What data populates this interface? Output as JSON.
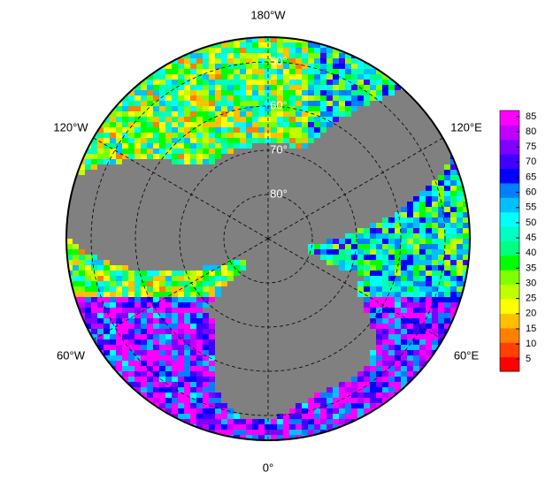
{
  "map": {
    "lon_labels": [
      "180°W",
      "120°E",
      "60°E",
      "0°",
      "60°W",
      "120°W"
    ],
    "lat_labels": [
      "50°",
      "60°",
      "70°",
      "80°"
    ]
  },
  "colorbar": {
    "lim": [
      1,
      87
    ],
    "ticks": [
      5,
      10,
      15,
      20,
      25,
      30,
      35,
      40,
      45,
      50,
      55,
      60,
      65,
      70,
      75,
      80,
      85
    ],
    "colors": [
      "#ff0000",
      "#ff4000",
      "#ff8000",
      "#ffc000",
      "#ffff00",
      "#c0ff00",
      "#80ff00",
      "#00ff00",
      "#00ff80",
      "#00ffc0",
      "#00ffff",
      "#00c0ff",
      "#0080ff",
      "#0000ff",
      "#4000ff",
      "#8000ff",
      "#c000ff",
      "#ff00ff"
    ]
  }
}
